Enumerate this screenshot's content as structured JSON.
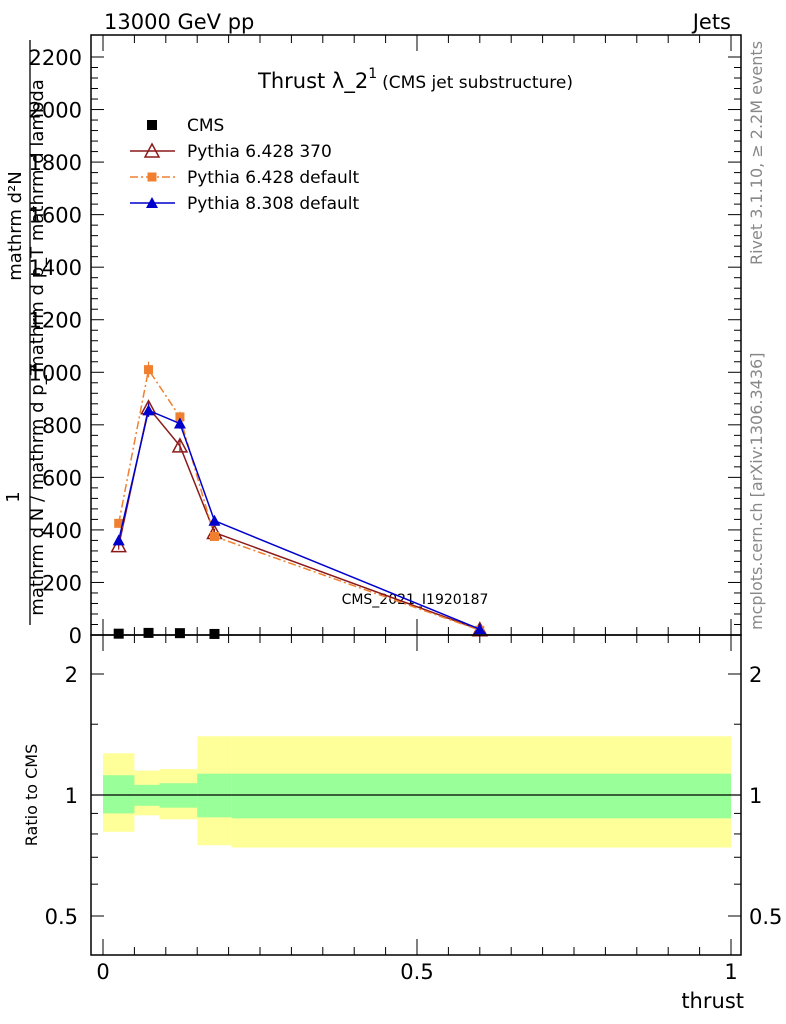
{
  "header": {
    "energy_label": "13000 GeV pp",
    "category_label": "Jets"
  },
  "side_notes": {
    "rivet": "Rivet 3.1.10, ≥ 2.2M events",
    "mcplots": "mcplots.cern.ch [arXiv:1306.3436]"
  },
  "chart_data": [
    {
      "type": "line",
      "title_main": "Thrust λ_2",
      "title_sup": "1",
      "title_sub": "(CMS jet substructure)",
      "ylabel_numerator": "1",
      "ylabel_denominator": "mathrm d N / mathrm d p_T mathrm d p_T mathrm d lambda",
      "ylabel_top": "mathrm d",
      "ylabel_numerator_frac": "mathrm dN",
      "ylabel_denominator_line1": "mathrm d N / mathrm d p_T mathrm d p_T mathrm d lambda",
      "ylabel_numerator_display": "mathrm d^{2}N",
      "ylabel_text_numerator": "mathrm d²N",
      "ylabel_text_denominator": "mathrm d p_T mathrm d lambda",
      "ylabel_front": "1",
      "ylabel_frac_bottom": "mathrm d N / mathrm d p_T",
      "xlim": [
        0,
        1
      ],
      "ylim": [
        0,
        2300
      ],
      "yticks": [
        0,
        200,
        400,
        600,
        800,
        1000,
        1200,
        1400,
        1600,
        1800,
        2000,
        2200
      ],
      "ytick_labels": [
        "0",
        "200",
        "400",
        "600",
        "800",
        "1000",
        "1200",
        "1400",
        "1600",
        "1800",
        "2000",
        "2200"
      ],
      "watermark": "CMS_2021_I1920187",
      "legend_position": "top-left",
      "series": [
        {
          "name": "CMS",
          "color": "#000000",
          "marker": "square",
          "x": [
            0.025,
            0.0725,
            0.1225,
            0.1775
          ],
          "y": [
            5,
            8,
            7,
            4
          ],
          "err": [
            0,
            0,
            0,
            0
          ],
          "line": false
        },
        {
          "name": "Pythia 6.428 370",
          "color": "#8b1a1a",
          "marker": "open-triangle",
          "dash": "",
          "x": [
            0.025,
            0.0725,
            0.1225,
            0.1775,
            0.6
          ],
          "y": [
            340,
            865,
            720,
            390,
            20
          ],
          "err": [
            15,
            25,
            20,
            15,
            3
          ],
          "line": true
        },
        {
          "name": "Pythia 6.428 default",
          "color": "#f08030",
          "marker": "filled-square",
          "dash": "8 3 2 3",
          "x": [
            0.025,
            0.0725,
            0.1225,
            0.1775,
            0.6
          ],
          "y": [
            425,
            1010,
            830,
            375,
            18
          ],
          "err": [
            15,
            30,
            20,
            15,
            3
          ],
          "line": true
        },
        {
          "name": "Pythia 8.308 default",
          "color": "#0000cc",
          "marker": "filled-triangle",
          "dash": "",
          "x": [
            0.025,
            0.0725,
            0.1225,
            0.1775,
            0.6
          ],
          "y": [
            360,
            855,
            805,
            435,
            22
          ],
          "err": [
            15,
            25,
            20,
            15,
            3
          ],
          "line": true
        }
      ]
    },
    {
      "type": "area",
      "ylabel": "Ratio to CMS",
      "xlabel": "thrust",
      "xlim": [
        0,
        1
      ],
      "ylim": [
        0.4,
        2.4
      ],
      "log_y": true,
      "yticks": [
        0.5,
        1,
        2
      ],
      "ytick_labels": [
        "0.5",
        "1",
        "2"
      ],
      "xticks": [
        0,
        0.5,
        1
      ],
      "xtick_labels": [
        "0",
        "0.5",
        "1"
      ],
      "reference_line": 1,
      "bands": [
        {
          "name": "outer",
          "color": "#ffff99",
          "bins": [
            [
              0,
              0.05,
              0.81,
              1.27
            ],
            [
              0.05,
              0.09,
              0.89,
              1.15
            ],
            [
              0.09,
              0.15,
              0.87,
              1.16
            ],
            [
              0.15,
              0.205,
              0.75,
              1.4
            ],
            [
              0.205,
              1,
              0.74,
              1.4
            ]
          ]
        },
        {
          "name": "inner",
          "color": "#99ff99",
          "bins": [
            [
              0,
              0.05,
              0.9,
              1.12
            ],
            [
              0.05,
              0.09,
              0.94,
              1.06
            ],
            [
              0.09,
              0.15,
              0.93,
              1.07
            ],
            [
              0.15,
              0.205,
              0.88,
              1.13
            ],
            [
              0.205,
              1,
              0.875,
              1.13
            ]
          ]
        }
      ]
    }
  ]
}
